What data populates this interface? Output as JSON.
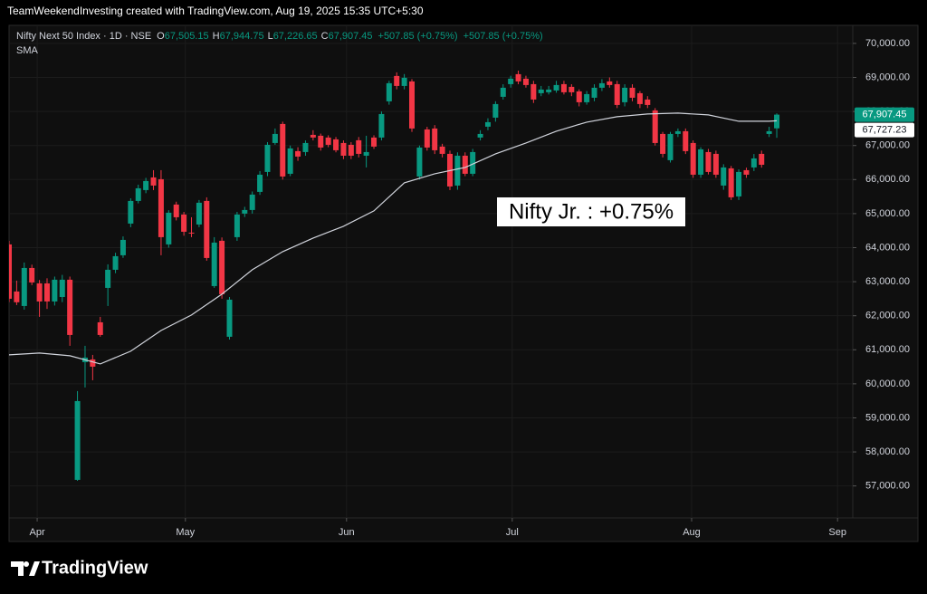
{
  "header": "TeamWeekendInvesting created with TradingView.com, Aug 19, 2025 15:35 UTC+5:30",
  "footer": "TradingView",
  "chart_data": {
    "type": "candlestick",
    "symbol": "Nifty Next 50 Index · 1D · NSE",
    "ohlc_legend": [
      {
        "key": "O",
        "value": "67,505.15"
      },
      {
        "key": "H",
        "value": "67,944.75"
      },
      {
        "key": "L",
        "value": "67,226.65"
      },
      {
        "key": "C",
        "value": "67,907.45"
      }
    ],
    "change": [
      "+507.85 (+0.75%)",
      "+507.85 (+0.75%)"
    ],
    "annotation": "Nifty Jr. : +0.75%",
    "up_color": "#089981",
    "down_color": "#f23645",
    "open": [
      64095,
      62712,
      62286,
      63403,
      62951,
      62950,
      62419,
      62550,
      63058,
      57179,
      60637,
      60717,
      61807,
      62818,
      63350,
      63776,
      64707,
      65372,
      65691,
      66063,
      66010,
      64095,
      65266,
      64973,
      64441,
      64680,
      65372,
      62871,
      64202,
      61382,
      64308,
      65000,
      65106,
      65638,
      66223,
      67074,
      67633,
      66170,
      66835,
      66808,
      67314,
      67287,
      67234,
      67181,
      67074,
      67021,
      67154,
      66701,
      67234,
      67234,
      68298,
      69043,
      68750,
      68883,
      66090,
      67473,
      67500,
      66968,
      66755,
      65824,
      66701,
      66170,
      67234,
      67553,
      67819,
      68431,
      68803,
      69096,
      68963,
      68803,
      68537,
      68564,
      68617,
      68803,
      68724,
      68590,
      68271,
      68404,
      68697,
      68883,
      68803,
      68271,
      68697,
      68537,
      68351,
      68032,
      67340,
      66569,
      67340,
      67420,
      67074,
      66143,
      66808,
      66755,
      65824,
      66329,
      65505,
      66276,
      66356,
      66755,
      67340,
      67505.15
    ],
    "high": [
      64200,
      63031,
      63563,
      63500,
      63050,
      63100,
      63150,
      63200,
      63150,
      59786,
      61116,
      60850,
      61967,
      63510,
      63850,
      64330,
      65450,
      65850,
      66050,
      66276,
      66276,
      65100,
      65350,
      65050,
      64893,
      65400,
      65478,
      64308,
      64300,
      62550,
      65050,
      65200,
      65650,
      66250,
      67100,
      67500,
      67700,
      67000,
      66950,
      67150,
      67450,
      67350,
      67300,
      67250,
      67150,
      67100,
      67250,
      67287,
      67300,
      68000,
      68900,
      69150,
      69100,
      68950,
      67000,
      67550,
      67600,
      67050,
      66850,
      66800,
      66800,
      66900,
      67450,
      67800,
      68300,
      68800,
      69050,
      69200,
      69050,
      68900,
      68750,
      68750,
      68900,
      68900,
      68800,
      68650,
      68600,
      68800,
      68950,
      69000,
      68900,
      68800,
      68800,
      68600,
      68450,
      68100,
      67400,
      67400,
      67500,
      67500,
      67150,
      66950,
      66900,
      66850,
      66450,
      66400,
      66300,
      66350,
      66750,
      66850,
      67550,
      67944.75
    ],
    "low": [
      62400,
      62313,
      62180,
      62900,
      61967,
      62200,
      62300,
      62400,
      61116,
      57150,
      59892,
      60105,
      61382,
      62286,
      63250,
      63700,
      64600,
      65300,
      65600,
      65691,
      63776,
      64000,
      64800,
      64350,
      64308,
      64600,
      63616,
      62818,
      62500,
      61300,
      64200,
      64900,
      65000,
      65550,
      66100,
      67021,
      66000,
      66100,
      66550,
      66700,
      67150,
      66850,
      66950,
      66800,
      66600,
      66600,
      66650,
      66356,
      66900,
      67150,
      68200,
      68650,
      68650,
      67400,
      66000,
      66850,
      66750,
      66650,
      65691,
      65700,
      66100,
      66100,
      67150,
      67450,
      67700,
      68350,
      68700,
      68800,
      68700,
      68250,
      68450,
      68500,
      68550,
      68500,
      68450,
      68150,
      68200,
      68300,
      68600,
      68700,
      68100,
      68150,
      68300,
      68100,
      68100,
      67000,
      66650,
      66500,
      67250,
      66750,
      66050,
      66050,
      66150,
      66050,
      65700,
      65400,
      65400,
      66050,
      66250,
      66350,
      67250,
      67226.65
    ],
    "close": [
      62499,
      62396,
      63403,
      62978,
      62419,
      62420,
      63058,
      63058,
      61435,
      59493,
      60770,
      60504,
      61435,
      63350,
      63749,
      64228,
      65372,
      65744,
      65957,
      65824,
      64308,
      65026,
      64893,
      64467,
      64414,
      65319,
      63696,
      64148,
      62632,
      62472,
      64973,
      65106,
      65558,
      66143,
      67021,
      67340,
      66090,
      66915,
      66675,
      67074,
      67234,
      66941,
      67021,
      66861,
      66701,
      66701,
      66755,
      66808,
      66968,
      67925,
      68830,
      68750,
      68990,
      67500,
      66941,
      66941,
      66861,
      66755,
      65797,
      66701,
      66170,
      66808,
      67340,
      67686,
      68218,
      68697,
      68963,
      68883,
      68777,
      68351,
      68644,
      68644,
      68777,
      68564,
      68564,
      68271,
      68510,
      68697,
      68830,
      68777,
      68191,
      68697,
      68404,
      68218,
      68191,
      67074,
      66755,
      67340,
      67420,
      66835,
      66143,
      66888,
      66223,
      66143,
      66356,
      65478,
      66223,
      66143,
      66621,
      66435,
      67420,
      67907.45
    ],
    "last_label": "67,907.45",
    "sma": {
      "name": "SMA",
      "color": "#d1d4dc",
      "x": [
        0,
        4,
        8,
        12,
        16,
        20,
        24,
        28,
        32,
        36,
        40,
        44,
        48,
        52,
        56,
        60,
        64,
        68,
        72,
        76,
        80,
        84,
        88,
        92,
        96,
        100,
        101
      ],
      "values": [
        60850,
        60903,
        60823,
        60584,
        60956,
        61567,
        62020,
        62632,
        63350,
        63882,
        64281,
        64627,
        65079,
        65904,
        66170,
        66356,
        66755,
        67074,
        67420,
        67686,
        67846,
        67925,
        67952,
        67899,
        67712,
        67712,
        67727.23
      ],
      "last_label": "67,727.23"
    },
    "xlim": [
      0,
      111
    ],
    "xticks": [
      {
        "value": 3.7,
        "label": "Apr"
      },
      {
        "value": 23.2,
        "label": "May"
      },
      {
        "value": 44.4,
        "label": "Jun"
      },
      {
        "value": 66.2,
        "label": "Jul"
      },
      {
        "value": 89.8,
        "label": "Aug"
      },
      {
        "value": 109,
        "label": "Sep"
      }
    ],
    "ylim": [
      56060,
      70530
    ],
    "yticks": [
      {
        "value": 57000,
        "label": "57,000.00"
      },
      {
        "value": 58000,
        "label": "58,000.00"
      },
      {
        "value": 59000,
        "label": "59,000.00"
      },
      {
        "value": 60000,
        "label": "60,000.00"
      },
      {
        "value": 61000,
        "label": "61,000.00"
      },
      {
        "value": 62000,
        "label": "62,000.00"
      },
      {
        "value": 63000,
        "label": "63,000.00"
      },
      {
        "value": 64000,
        "label": "64,000.00"
      },
      {
        "value": 65000,
        "label": "65,000.00"
      },
      {
        "value": 66000,
        "label": "66,000.00"
      },
      {
        "value": 67000,
        "label": "67,000.00"
      },
      {
        "value": 68000,
        "label": "68,000.00"
      },
      {
        "value": 69000,
        "label": "69,000.00"
      },
      {
        "value": 70000,
        "label": "70,000.00"
      }
    ],
    "grid": true
  }
}
